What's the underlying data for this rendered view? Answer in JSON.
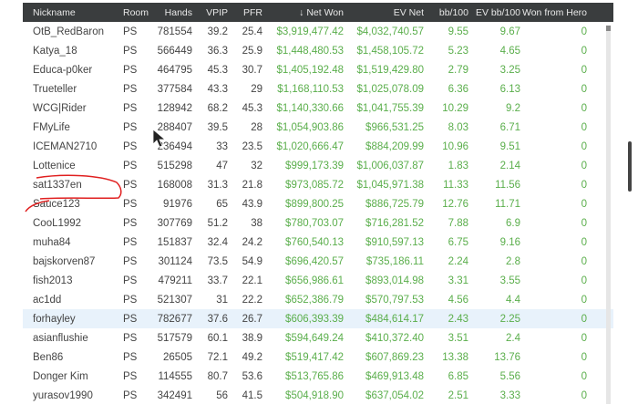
{
  "columns": [
    "Nickname",
    "Room",
    "Hands",
    "VPIP",
    "PFR",
    "Net Won",
    "EV Net",
    "bb/100",
    "EV bb/100",
    "Won from Hero"
  ],
  "sort": {
    "column": "Net Won",
    "direction": "descending",
    "icon": "arrow-down-icon",
    "glyph": "🡣"
  },
  "colors": {
    "header_bg": "#3a3d3e",
    "positive": "#5aae4b",
    "highlight": "#e8f2fb",
    "annotation": "#e02020"
  },
  "rows": [
    [
      "OtB_RedBaron",
      "PS",
      "781554",
      "39.2",
      "25.4",
      "$3,919,477.42",
      "$4,032,740.57",
      "9.55",
      "9.67",
      "0"
    ],
    [
      "Katya_18",
      "PS",
      "566449",
      "36.3",
      "25.9",
      "$1,448,480.53",
      "$1,458,105.72",
      "5.23",
      "4.65",
      "0"
    ],
    [
      "Educa-p0ker",
      "PS",
      "464795",
      "45.3",
      "30.7",
      "$1,405,192.48",
      "$1,519,429.80",
      "2.79",
      "3.25",
      "0"
    ],
    [
      "Trueteller",
      "PS",
      "377584",
      "43.3",
      "29",
      "$1,168,110.53",
      "$1,025,078.09",
      "6.36",
      "6.13",
      "0"
    ],
    [
      "WCG|Rider",
      "PS",
      "128942",
      "68.2",
      "45.3",
      "$1,140,330.66",
      "$1,041,755.39",
      "10.29",
      "9.2",
      "0"
    ],
    [
      "FMyLife",
      "PS",
      "288407",
      "39.5",
      "28",
      "$1,054,903.86",
      "$966,531.25",
      "8.03",
      "6.71",
      "0"
    ],
    [
      "ICEMAN2710",
      "PS",
      "236494",
      "33",
      "23.5",
      "$1,020,666.47",
      "$884,209.99",
      "10.96",
      "9.51",
      "0"
    ],
    [
      "Lottenice",
      "PS",
      "515298",
      "47",
      "32",
      "$999,173.39",
      "$1,006,037.87",
      "1.83",
      "2.14",
      "0"
    ],
    [
      "sat1337en",
      "PS",
      "168008",
      "31.3",
      "21.8",
      "$973,085.72",
      "$1,045,971.38",
      "11.33",
      "11.56",
      "0"
    ],
    [
      "Sauce123",
      "PS",
      "91976",
      "65",
      "43.9",
      "$899,800.25",
      "$886,725.79",
      "12.76",
      "11.71",
      "0"
    ],
    [
      "CooL1992",
      "PS",
      "307769",
      "51.2",
      "38",
      "$780,703.07",
      "$716,281.52",
      "7.88",
      "6.9",
      "0"
    ],
    [
      "muha84",
      "PS",
      "151837",
      "32.4",
      "24.2",
      "$760,540.13",
      "$910,597.13",
      "6.75",
      "9.16",
      "0"
    ],
    [
      "bajskorven87",
      "PS",
      "301124",
      "73.5",
      "54.9",
      "$696,420.57",
      "$735,186.11",
      "2.24",
      "2.8",
      "0"
    ],
    [
      "fish2013",
      "PS",
      "479211",
      "33.7",
      "22.1",
      "$656,986.61",
      "$893,014.98",
      "3.31",
      "3.55",
      "0"
    ],
    [
      "ac1dd",
      "PS",
      "521307",
      "31",
      "22.2",
      "$652,386.79",
      "$570,797.53",
      "4.56",
      "4.4",
      "0"
    ],
    [
      "forhayley",
      "PS",
      "782677",
      "37.6",
      "26.7",
      "$606,393.39",
      "$484,614.17",
      "2.43",
      "2.25",
      "0"
    ],
    [
      "asianflushie",
      "PS",
      "517579",
      "60.1",
      "38.9",
      "$594,649.24",
      "$410,372.40",
      "3.51",
      "2.4",
      "0"
    ],
    [
      "Ben86",
      "PS",
      "26505",
      "72.1",
      "49.2",
      "$519,417.42",
      "$607,869.23",
      "13.38",
      "13.76",
      "0"
    ],
    [
      "Donger Kim",
      "PS",
      "114555",
      "80.7",
      "53.6",
      "$513,765.86",
      "$469,913.48",
      "6.85",
      "5.56",
      "0"
    ],
    [
      "yurasov1990",
      "PS",
      "342491",
      "56",
      "41.5",
      "$504,918.90",
      "$637,054.02",
      "2.51",
      "3.33",
      "0"
    ]
  ],
  "highlighted_row": "forhayley",
  "annotated_row": "sat1337en"
}
